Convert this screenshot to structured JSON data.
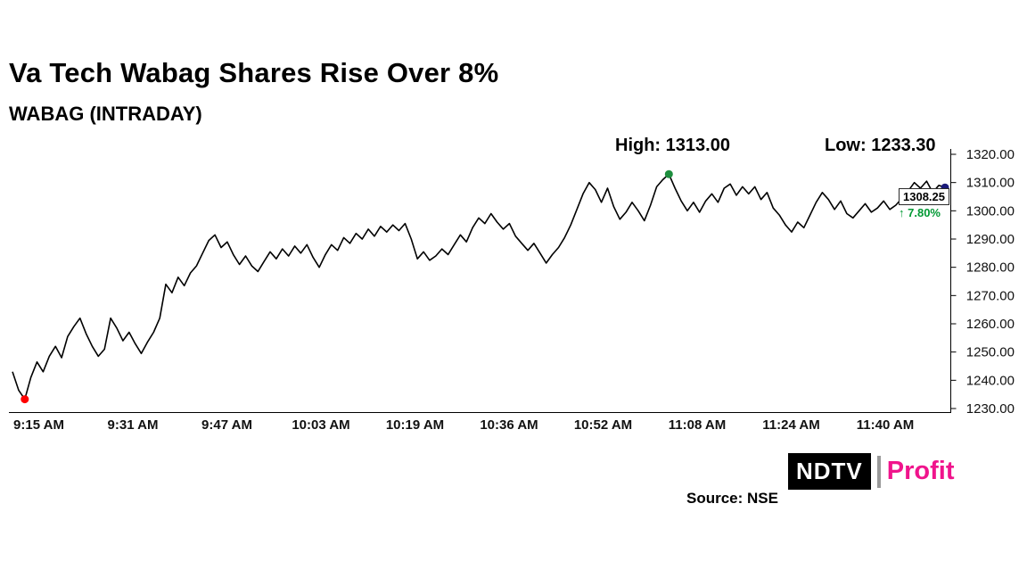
{
  "title": "Va Tech Wabag Shares Rise Over 8%",
  "subtitle": "WABAG (INTRADAY)",
  "annotations": {
    "high": "High: 1313.00",
    "low": "Low: 1233.30"
  },
  "price_tag": {
    "price": "1308.25",
    "arrow": "↑",
    "change": "7.80%"
  },
  "logo": {
    "ndtv": "NDTV",
    "profit": "Profit"
  },
  "source": "Source: NSE",
  "colors": {
    "line": "#000000",
    "low_marker": "#ff0000",
    "high_marker": "#1e8e3e",
    "last_marker": "#1b1b7a",
    "change_green": "#009933",
    "profit_pink": "#f0148c"
  },
  "chart_data": {
    "type": "line",
    "title": "WABAG (INTRADAY)",
    "xlabel": "",
    "ylabel": "",
    "ylim": [
      1230,
      1320
    ],
    "grid": false,
    "y_ticks": [
      1230,
      1240,
      1250,
      1260,
      1270,
      1280,
      1290,
      1300,
      1310,
      1320
    ],
    "x_ticks": [
      "9:15 AM",
      "9:31 AM",
      "9:47 AM",
      "10:03 AM",
      "10:19 AM",
      "10:36 AM",
      "10:52 AM",
      "11:08 AM",
      "11:24 AM",
      "11:40 AM"
    ],
    "x_tick_minutes": [
      0,
      16,
      32,
      48,
      64,
      81,
      97,
      113,
      129,
      145
    ],
    "high": 1313.0,
    "low": 1233.3,
    "last_price": 1308.25,
    "change_percent": "+7.80%",
    "series": [
      {
        "name": "WABAG",
        "color": "#000000",
        "start_time": "9:15 AM",
        "interval_minutes": 1,
        "values": [
          1243,
          1236.5,
          1233.3,
          1241,
          1246.5,
          1243,
          1248.5,
          1252,
          1248,
          1255.5,
          1259,
          1262,
          1256.5,
          1252,
          1248.5,
          1251,
          1262,
          1258.5,
          1254,
          1257,
          1253,
          1249.5,
          1253.5,
          1257,
          1262,
          1274,
          1271,
          1276.5,
          1273.5,
          1278,
          1280.5,
          1285,
          1289.5,
          1291.5,
          1287,
          1289,
          1284.5,
          1281,
          1284,
          1280.5,
          1278.5,
          1282,
          1285.5,
          1283,
          1286.5,
          1284,
          1287.5,
          1285,
          1288,
          1283.5,
          1280,
          1284.5,
          1288,
          1286,
          1290.5,
          1288.5,
          1292,
          1290,
          1293.5,
          1291,
          1294.5,
          1292.5,
          1295,
          1293,
          1295.5,
          1290,
          1283,
          1285.5,
          1282.5,
          1284,
          1286.5,
          1284.5,
          1288,
          1291.5,
          1289,
          1294,
          1297.5,
          1295.5,
          1299,
          1296,
          1293.5,
          1295.5,
          1291,
          1288.5,
          1286,
          1288.5,
          1285,
          1281.5,
          1284.5,
          1287,
          1290.5,
          1295,
          1300.5,
          1306,
          1310,
          1307.5,
          1303,
          1308,
          1301.5,
          1297,
          1299.5,
          1303,
          1300,
          1296.5,
          1302,
          1308.5,
          1311,
          1313,
          1308,
          1303.5,
          1300,
          1303,
          1299.5,
          1303.5,
          1306,
          1303,
          1308,
          1309.5,
          1305.5,
          1308.5,
          1306,
          1308.5,
          1304,
          1306.5,
          1301,
          1298.5,
          1295,
          1292.5,
          1296,
          1294,
          1298.5,
          1303,
          1306.5,
          1304,
          1300.5,
          1303.5,
          1299,
          1297.5,
          1300,
          1302.5,
          1299.5,
          1301,
          1303.5,
          1300.5,
          1302,
          1304.5,
          1307,
          1310,
          1308,
          1310.5,
          1306.5,
          1309,
          1308.25
        ]
      }
    ],
    "markers": [
      {
        "name": "low",
        "minute": 2,
        "price": 1233.3,
        "color": "#ff0000"
      },
      {
        "name": "high",
        "minute": 107,
        "price": 1313.0,
        "color": "#1e8e3e"
      },
      {
        "name": "last",
        "minute": 152,
        "price": 1308.25,
        "color": "#1b1b7a"
      }
    ]
  }
}
